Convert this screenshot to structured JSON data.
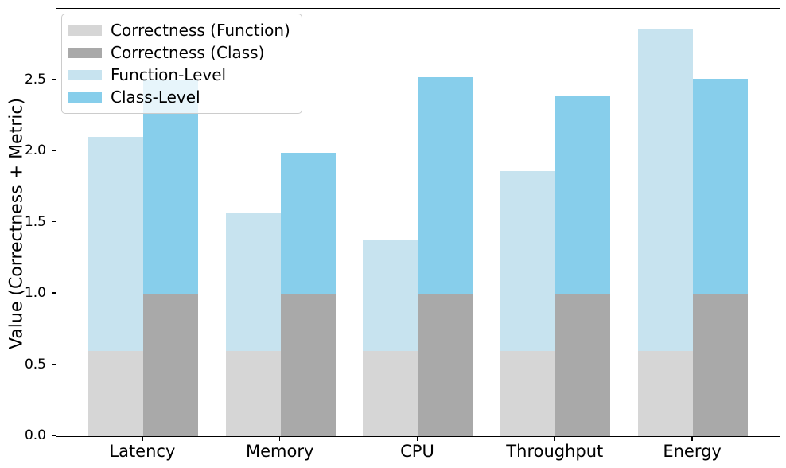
{
  "chart_data": {
    "type": "bar",
    "mode": "grouped-stacked",
    "title": "",
    "xlabel": "",
    "ylabel": "Value (Correctness + Metric)",
    "categories": [
      "Latency",
      "Memory",
      "CPU",
      "Throughput",
      "Energy"
    ],
    "series": [
      {
        "name": "Correctness (Function)",
        "stack": "function",
        "color": "#d6d6d6",
        "values": [
          0.6,
          0.6,
          0.6,
          0.6,
          0.6
        ]
      },
      {
        "name": "Correctness (Class)",
        "stack": "class",
        "color": "#a9a9a9",
        "values": [
          1.0,
          1.0,
          1.0,
          1.0,
          1.0
        ]
      },
      {
        "name": "Function-Level",
        "stack": "function",
        "color": "#c7e3ef",
        "values": [
          1.5,
          0.97,
          0.78,
          1.26,
          2.26
        ]
      },
      {
        "name": "Class-Level",
        "stack": "class",
        "color": "#87ceeb",
        "values": [
          1.5,
          0.99,
          1.52,
          1.39,
          1.51
        ]
      }
    ],
    "stack_totals": {
      "function": [
        2.1,
        1.57,
        1.38,
        1.86,
        2.86
      ],
      "class": [
        2.5,
        1.99,
        2.52,
        2.39,
        2.51
      ]
    },
    "ylim": [
      0,
      3.0
    ],
    "yticks": [
      {
        "v": 0.0,
        "label": "0.0"
      },
      {
        "v": 0.5,
        "label": "0.5"
      },
      {
        "v": 1.0,
        "label": "1.0"
      },
      {
        "v": 1.5,
        "label": "1.5"
      },
      {
        "v": 2.0,
        "label": "2.0"
      },
      {
        "v": 2.5,
        "label": "2.5"
      }
    ],
    "legend_position": "upper left",
    "grid": false,
    "colors": {
      "axis": "#000000",
      "text": "#000000",
      "legend_border": "#cccccc",
      "background": "#ffffff"
    }
  }
}
